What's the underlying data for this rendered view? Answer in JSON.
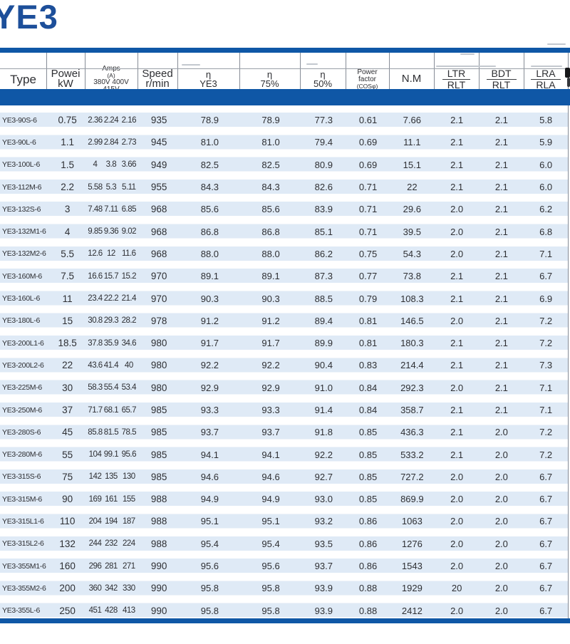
{
  "page": {
    "title": "YE3"
  },
  "colors": {
    "accent_blue": "#0f57a6",
    "title_blue": "#1d4f9a",
    "row_stripe": "#dfeaf6"
  },
  "table": {
    "headers": {
      "type": "Type",
      "power": [
        "Powei",
        "kW"
      ],
      "amps": [
        "Amps",
        "(A)",
        "380V 400V 415V"
      ],
      "speed": [
        "Speed",
        "r/min"
      ],
      "eta_full": [
        "η",
        "YE3"
      ],
      "eta_75": [
        "η",
        "75%"
      ],
      "eta_50": [
        "η",
        "50%"
      ],
      "power_factor": [
        "Power",
        "factor",
        "(COSφ)"
      ],
      "nm": "N.M",
      "ltr_rlt": [
        "LTR",
        "RLT"
      ],
      "bdt_rlt": [
        "BDT",
        "RLT"
      ],
      "lra_rla": [
        "LRA",
        "RLA"
      ]
    },
    "rows": [
      [
        "YE3-90S-6",
        "0.75",
        "2.36",
        "2.24",
        "2.16",
        "935",
        "78.9",
        "78.9",
        "77.3",
        "0.61",
        "7.66",
        "2.1",
        "2.1",
        "5.8"
      ],
      [
        "YE3-90L-6",
        "1.1",
        "2.99",
        "2.84",
        "2.73",
        "945",
        "81.0",
        "81.0",
        "79.4",
        "0.69",
        "11.1",
        "2.1",
        "2.1",
        "5.9"
      ],
      [
        "YE3-100L-6",
        "1.5",
        "4",
        "3.8",
        "3.66",
        "949",
        "82.5",
        "82.5",
        "80.9",
        "0.69",
        "15.1",
        "2.1",
        "2.1",
        "6.0"
      ],
      [
        "YE3-112M-6",
        "2.2",
        "5.58",
        "5.3",
        "5.11",
        "955",
        "84.3",
        "84.3",
        "82.6",
        "0.71",
        "22",
        "2.1",
        "2.1",
        "6.0"
      ],
      [
        "YE3-132S-6",
        "3",
        "7.48",
        "7.11",
        "6.85",
        "968",
        "85.6",
        "85.6",
        "83.9",
        "0.71",
        "29.6",
        "2.0",
        "2.1",
        "6.2"
      ],
      [
        "YE3-132M1-6",
        "4",
        "9.85",
        "9.36",
        "9.02",
        "968",
        "86.8",
        "86.8",
        "85.1",
        "0.71",
        "39.5",
        "2.0",
        "2.1",
        "6.8"
      ],
      [
        "YE3-132M2-6",
        "5.5",
        "12.6",
        "12",
        "11.6",
        "968",
        "88.0",
        "88.0",
        "86.2",
        "0.75",
        "54.3",
        "2.0",
        "2.1",
        "7.1"
      ],
      [
        "YE3-160M-6",
        "7.5",
        "16.6",
        "15.7",
        "15.2",
        "970",
        "89.1",
        "89.1",
        "87.3",
        "0.77",
        "73.8",
        "2.1",
        "2.1",
        "6.7"
      ],
      [
        "YE3-160L-6",
        "11",
        "23.4",
        "22.2",
        "21.4",
        "970",
        "90.3",
        "90.3",
        "88.5",
        "0.79",
        "108.3",
        "2.1",
        "2.1",
        "6.9"
      ],
      [
        "YE3-180L-6",
        "15",
        "30.8",
        "29.3",
        "28.2",
        "978",
        "91.2",
        "91.2",
        "89.4",
        "0.81",
        "146.5",
        "2.0",
        "2.1",
        "7.2"
      ],
      [
        "YE3-200L1-6",
        "18.5",
        "37.8",
        "35.9",
        "34.6",
        "980",
        "91.7",
        "91.7",
        "89.9",
        "0.81",
        "180.3",
        "2.1",
        "2.1",
        "7.2"
      ],
      [
        "YE3-200L2-6",
        "22",
        "43.6",
        "41.4",
        "40",
        "980",
        "92.2",
        "92.2",
        "90.4",
        "0.83",
        "214.4",
        "2.1",
        "2.1",
        "7.3"
      ],
      [
        "YE3-225M-6",
        "30",
        "58.3",
        "55.4",
        "53.4",
        "980",
        "92.9",
        "92.9",
        "91.0",
        "0.84",
        "292.3",
        "2.0",
        "2.1",
        "7.1"
      ],
      [
        "YE3-250M-6",
        "37",
        "71.7",
        "68.1",
        "65.7",
        "985",
        "93.3",
        "93.3",
        "91.4",
        "0.84",
        "358.7",
        "2.1",
        "2.1",
        "7.1"
      ],
      [
        "YE3-280S-6",
        "45",
        "85.8",
        "81.5",
        "78.5",
        "985",
        "93.7",
        "93.7",
        "91.8",
        "0.85",
        "436.3",
        "2.1",
        "2.0",
        "7.2"
      ],
      [
        "YE3-280M-6",
        "55",
        "104",
        "99.1",
        "95.6",
        "985",
        "94.1",
        "94.1",
        "92.2",
        "0.85",
        "533.2",
        "2.1",
        "2.0",
        "7.2"
      ],
      [
        "YE3-315S-6",
        "75",
        "142",
        "135",
        "130",
        "985",
        "94.6",
        "94.6",
        "92.7",
        "0.85",
        "727.2",
        "2.0",
        "2.0",
        "6.7"
      ],
      [
        "YE3-315M-6",
        "90",
        "169",
        "161",
        "155",
        "988",
        "94.9",
        "94.9",
        "93.0",
        "0.85",
        "869.9",
        "2.0",
        "2.0",
        "6.7"
      ],
      [
        "YE3-315L1-6",
        "110",
        "204",
        "194",
        "187",
        "988",
        "95.1",
        "95.1",
        "93.2",
        "0.86",
        "1063",
        "2.0",
        "2.0",
        "6.7"
      ],
      [
        "YE3-315L2-6",
        "132",
        "244",
        "232",
        "224",
        "988",
        "95.4",
        "95.4",
        "93.5",
        "0.86",
        "1276",
        "2.0",
        "2.0",
        "6.7"
      ],
      [
        "YE3-355M1-6",
        "160",
        "296",
        "281",
        "271",
        "990",
        "95.6",
        "95.6",
        "93.7",
        "0.86",
        "1543",
        "2.0",
        "2.0",
        "6.7"
      ],
      [
        "YE3-355M2-6",
        "200",
        "360",
        "342",
        "330",
        "990",
        "95.8",
        "95.8",
        "93.9",
        "0.88",
        "1929",
        "20",
        "2.0",
        "6.7"
      ],
      [
        "YE3-355L-6",
        "250",
        "451",
        "428",
        "413",
        "990",
        "95.8",
        "95.8",
        "93.9",
        "0.88",
        "2412",
        "2.0",
        "2.0",
        "6.7"
      ]
    ]
  }
}
